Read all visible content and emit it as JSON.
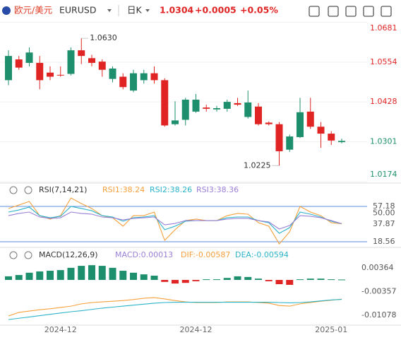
{
  "header": {
    "pair_cn": "欧元/美元",
    "symbol": "EURUSD",
    "period": "日K",
    "price": "1.0304",
    "change": "+0.0005",
    "change_pct": "+0.05%"
  },
  "chart_data": [
    {
      "type": "candlestick",
      "up_color": "#1e8f6c",
      "down_color": "#e02424",
      "categories": [
        null,
        null,
        null,
        null,
        null,
        "2024-12",
        null,
        null,
        null,
        null,
        null,
        null,
        null,
        null,
        null,
        null,
        null,
        null,
        "2024-12",
        null,
        null,
        null,
        null,
        null,
        null,
        null,
        null,
        null,
        null,
        null,
        null,
        "2025-01",
        null
      ],
      "open": [
        1.0497,
        1.0563,
        1.0552,
        1.0552,
        1.0521,
        1.0514,
        1.0517,
        1.0592,
        1.0567,
        1.0556,
        1.0501,
        1.0508,
        1.0464,
        1.0497,
        1.0519,
        1.0497,
        1.0357,
        1.0371,
        1.0397,
        1.041,
        1.0404,
        1.0406,
        1.0424,
        1.038,
        1.0413,
        1.0362,
        1.0357,
        1.0276,
        1.0316,
        1.0397,
        1.0349,
        1.0327,
        1.03
      ],
      "high": [
        1.0592,
        1.0574,
        1.0601,
        1.0574,
        1.0541,
        1.0541,
        1.0601,
        1.063,
        1.0578,
        1.0563,
        1.0541,
        1.0519,
        1.053,
        1.053,
        1.0541,
        1.0503,
        1.043,
        1.0441,
        1.0453,
        1.0419,
        1.0415,
        1.0435,
        1.0441,
        1.0464,
        1.0424,
        1.0366,
        1.0364,
        1.0324,
        1.0441,
        1.0441,
        1.0364,
        1.0335,
        1.0311
      ],
      "low": [
        1.0481,
        1.053,
        1.0541,
        1.0468,
        1.0497,
        1.0508,
        1.0512,
        1.0548,
        1.0541,
        1.0508,
        1.049,
        1.0468,
        1.0459,
        1.0486,
        1.0486,
        1.0349,
        1.0353,
        1.0353,
        1.0393,
        1.0397,
        1.0397,
        1.0397,
        1.0415,
        1.0375,
        1.0353,
        1.0353,
        1.0225,
        1.0269,
        1.0313,
        1.0342,
        1.0282,
        1.0291,
        1.0296
      ],
      "close": [
        1.0574,
        1.0537,
        1.0585,
        1.0497,
        1.0508,
        1.0512,
        1.0592,
        1.0574,
        1.0552,
        1.053,
        1.0534,
        1.0475,
        1.0519,
        1.0519,
        1.0497,
        1.0353,
        1.0369,
        1.0435,
        1.0435,
        1.0406,
        1.0408,
        1.0428,
        1.0419,
        1.0426,
        1.0357,
        1.0357,
        1.0271,
        1.0318,
        1.0395,
        1.0349,
        1.0327,
        1.0305,
        1.0304
      ],
      "annotations": [
        "1.0630",
        "1.0225"
      ],
      "ylim": [
        1.0172,
        1.0689
      ],
      "yticks": [
        1.0681,
        1.0554,
        1.0428,
        1.0301,
        1.0174
      ],
      "grid": true
    },
    {
      "type": "line",
      "title": "RSI(7,14,21)",
      "ylim": [
        12.4,
        68.0
      ],
      "yticks": [
        57.18,
        {
          "value": 50,
          "label": "50.00"
        },
        37.87,
        18.56
      ],
      "series": [
        {
          "name": "RSI1:38.24",
          "color": "#f5a03c",
          "values": [
            54.9,
            58.7,
            62.6,
            47.1,
            43.3,
            47.1,
            66.4,
            60.3,
            54.9,
            47.1,
            44.8,
            35.6,
            47.1,
            47.1,
            51.0,
            20.1,
            31.7,
            41.7,
            43.3,
            41.7,
            41.7,
            47.1,
            49.5,
            48.7,
            39.4,
            35.6,
            16.2,
            29.4,
            57.2,
            51.0,
            47.1,
            39.4,
            38.24
          ]
        },
        {
          "name": "RSI2:38.26",
          "color": "#2bb3c8",
          "values": [
            51.0,
            53.3,
            56.4,
            47.1,
            44.8,
            46.4,
            57.2,
            54.9,
            52.5,
            47.1,
            45.6,
            41.0,
            44.8,
            45.6,
            47.1,
            31.7,
            35.6,
            41.0,
            41.7,
            41.7,
            41.7,
            44.8,
            45.6,
            45.6,
            41.7,
            39.4,
            27.8,
            34.0,
            51.0,
            48.7,
            45.6,
            41.0,
            38.26
          ]
        },
        {
          "name": "RSI3:38.36",
          "color": "#9a7fd6",
          "values": [
            47.1,
            49.5,
            51.0,
            45.6,
            44.1,
            44.8,
            51.0,
            49.5,
            48.7,
            45.6,
            44.8,
            42.5,
            44.1,
            44.8,
            45.6,
            37.1,
            38.6,
            41.7,
            41.7,
            41.7,
            41.7,
            43.3,
            44.1,
            44.1,
            41.7,
            40.2,
            32.5,
            36.3,
            47.1,
            46.4,
            44.8,
            41.7,
            38.36
          ]
        }
      ]
    },
    {
      "type": "macd",
      "title": "MACD(12,26,9)",
      "up_color": "#1e8f6c",
      "down_color": "#e02424",
      "ylim": [
        -0.0138,
        0.0082
      ],
      "yticks": [
        0.00364,
        -0.00357,
        -0.01078
      ],
      "series": [
        {
          "name": "MACD:0.00013",
          "color": "#9a7fd6",
          "values": [
            0.0011,
            0.0015,
            0.0022,
            0.0026,
            0.0028,
            0.003,
            0.0037,
            0.0043,
            0.0045,
            0.0043,
            0.0037,
            0.0028,
            0.0022,
            0.0017,
            0.0013,
            -0.0006,
            -0.0011,
            -0.0009,
            -0.0004,
            0.0002,
            0.0002,
            0.0006,
            0.0011,
            0.0009,
            0.0004,
            -0.0004,
            -0.0013,
            -0.0015,
            0.0002,
            0.0004,
            0.0004,
            0.0002,
            0.00013
          ]
        },
        {
          "name": "DIF:-0.00587",
          "color": "#f5a03c",
          "values": [
            -0.011,
            -0.0099,
            -0.0095,
            -0.0091,
            -0.0088,
            -0.0084,
            -0.008,
            -0.0073,
            -0.0069,
            -0.0067,
            -0.0065,
            -0.0063,
            -0.006,
            -0.0056,
            -0.0054,
            -0.0058,
            -0.0063,
            -0.0067,
            -0.0069,
            -0.0069,
            -0.0069,
            -0.0067,
            -0.0067,
            -0.0067,
            -0.0069,
            -0.0071,
            -0.0078,
            -0.008,
            -0.0073,
            -0.0069,
            -0.0065,
            -0.0062,
            -0.00587
          ]
        },
        {
          "name": "DEA:-0.00594",
          "color": "#2bb3c8",
          "values": [
            -0.0121,
            -0.0117,
            -0.0113,
            -0.0109,
            -0.0105,
            -0.0101,
            -0.0097,
            -0.0094,
            -0.009,
            -0.0086,
            -0.0083,
            -0.008,
            -0.0077,
            -0.0074,
            -0.0071,
            -0.0069,
            -0.0068,
            -0.0068,
            -0.0068,
            -0.0068,
            -0.0068,
            -0.0068,
            -0.0068,
            -0.0068,
            -0.0068,
            -0.0068,
            -0.0069,
            -0.007,
            -0.0069,
            -0.0067,
            -0.0064,
            -0.0061,
            -0.00594
          ]
        }
      ]
    }
  ]
}
